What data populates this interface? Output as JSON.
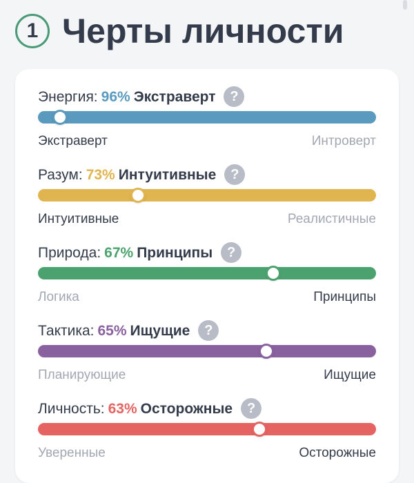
{
  "header": {
    "step_number": "1",
    "title": "Черты личности"
  },
  "help_symbol": "?",
  "traits": [
    {
      "name": "Энергия:",
      "percent": "96%",
      "type": "Экстраверт",
      "left_pole": "Экстраверт",
      "right_pole": "Интроверт",
      "active_side": "left",
      "color": "#5a9abf",
      "slider_position": 0.065
    },
    {
      "name": "Разум:",
      "percent": "73%",
      "type": "Интуитивные",
      "left_pole": "Интуитивные",
      "right_pole": "Реалистичные",
      "active_side": "left",
      "color": "#e0b54f",
      "slider_position": 0.295
    },
    {
      "name": "Природа:",
      "percent": "67%",
      "type": "Принципы",
      "left_pole": "Логика",
      "right_pole": "Принципы",
      "active_side": "right",
      "color": "#4ca26f",
      "slider_position": 0.695
    },
    {
      "name": "Тактика:",
      "percent": "65%",
      "type": "Ищущие",
      "left_pole": "Планирующие",
      "right_pole": "Ищущие",
      "active_side": "right",
      "color": "#89619f",
      "slider_position": 0.675
    },
    {
      "name": "Личность:",
      "percent": "63%",
      "type": "Осторожные",
      "left_pole": "Уверенные",
      "right_pole": "Осторожные",
      "active_side": "right",
      "color": "#e56462",
      "slider_position": 0.655
    }
  ]
}
